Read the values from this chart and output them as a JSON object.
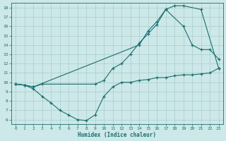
{
  "xlabel": "Humidex (Indice chaleur)",
  "bg_color": "#cde8e8",
  "grid_color": "#a8cccc",
  "line_color": "#1a6e6e",
  "xlim": [
    -0.5,
    23.5
  ],
  "ylim": [
    5.5,
    18.5
  ],
  "yticks": [
    6,
    7,
    8,
    9,
    10,
    11,
    12,
    13,
    14,
    15,
    16,
    17,
    18
  ],
  "xticks": [
    0,
    1,
    2,
    3,
    4,
    5,
    6,
    7,
    8,
    9,
    10,
    11,
    12,
    13,
    14,
    15,
    16,
    17,
    18,
    19,
    20,
    21,
    22,
    23
  ],
  "line1_x": [
    0,
    1,
    2,
    14,
    15,
    16,
    17,
    18,
    19,
    21,
    23
  ],
  "line1_y": [
    9.8,
    9.7,
    9.5,
    14.0,
    15.5,
    16.5,
    17.8,
    18.2,
    18.2,
    17.8,
    11.5
  ],
  "line2_x": [
    0,
    1,
    2,
    3,
    9,
    10,
    11,
    12,
    13,
    14,
    15,
    16,
    17,
    19,
    20,
    21,
    22,
    23
  ],
  "line2_y": [
    9.8,
    9.7,
    9.5,
    9.8,
    9.8,
    10.2,
    11.5,
    12.0,
    13.0,
    14.2,
    15.2,
    16.2,
    17.8,
    16.0,
    14.0,
    13.5,
    13.5,
    12.5
  ],
  "line3_x": [
    0,
    1,
    2,
    3,
    4,
    5,
    6,
    7,
    8,
    9,
    10,
    11,
    12,
    13,
    14,
    15,
    16,
    17,
    18,
    19,
    20,
    21,
    22,
    23
  ],
  "line3_y": [
    9.8,
    9.7,
    9.3,
    8.5,
    7.8,
    7.0,
    6.5,
    6.0,
    5.9,
    6.5,
    8.5,
    9.5,
    10.0,
    10.0,
    10.2,
    10.3,
    10.5,
    10.5,
    10.7,
    10.8,
    10.8,
    10.9,
    11.0,
    11.5
  ]
}
